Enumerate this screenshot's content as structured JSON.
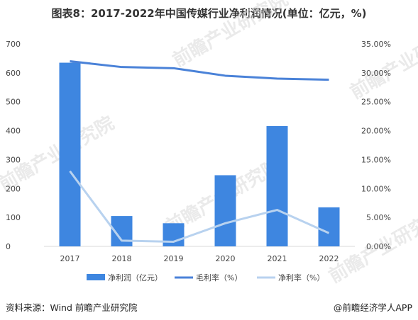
{
  "page_title": "图表8：2017-2022年中国传媒行业净利润情况(单位：亿元，%)",
  "source_text": "资料来源：Wind 前瞻产业研究院",
  "brand_text": "@前瞻经济学人APP",
  "watermark_text": "前瞻产业研究院",
  "colors": {
    "bar": "#3e86e0",
    "gross_line": "#4a82d8",
    "net_line": "#b8d2ef"
  },
  "chart_data": {
    "type": "bar",
    "categories": [
      "2017",
      "2018",
      "2019",
      "2020",
      "2021",
      "2022"
    ],
    "left_axis": {
      "ylim": [
        0,
        700
      ],
      "ticks": [
        "0",
        "100",
        "200",
        "300",
        "400",
        "500",
        "600",
        "700"
      ]
    },
    "right_axis": {
      "ylim": [
        0,
        35
      ],
      "ticks": [
        "0.00%",
        "5.00%",
        "10.00%",
        "15.00%",
        "20.00%",
        "25.00%",
        "30.00%",
        "35.00%"
      ]
    },
    "series": [
      {
        "name": "净利润（亿元）",
        "type": "bar",
        "axis": "left",
        "values": [
          635,
          105,
          80,
          246,
          416,
          135
        ]
      },
      {
        "name": "毛利率（%）",
        "type": "line",
        "axis": "right",
        "values": [
          32.0,
          31.0,
          30.8,
          29.5,
          29.0,
          28.8
        ]
      },
      {
        "name": "净利率（%）",
        "type": "line",
        "axis": "right",
        "values": [
          13.0,
          1.0,
          0.8,
          4.0,
          6.3,
          2.3
        ]
      }
    ],
    "legend_position": "bottom",
    "grid": false
  }
}
